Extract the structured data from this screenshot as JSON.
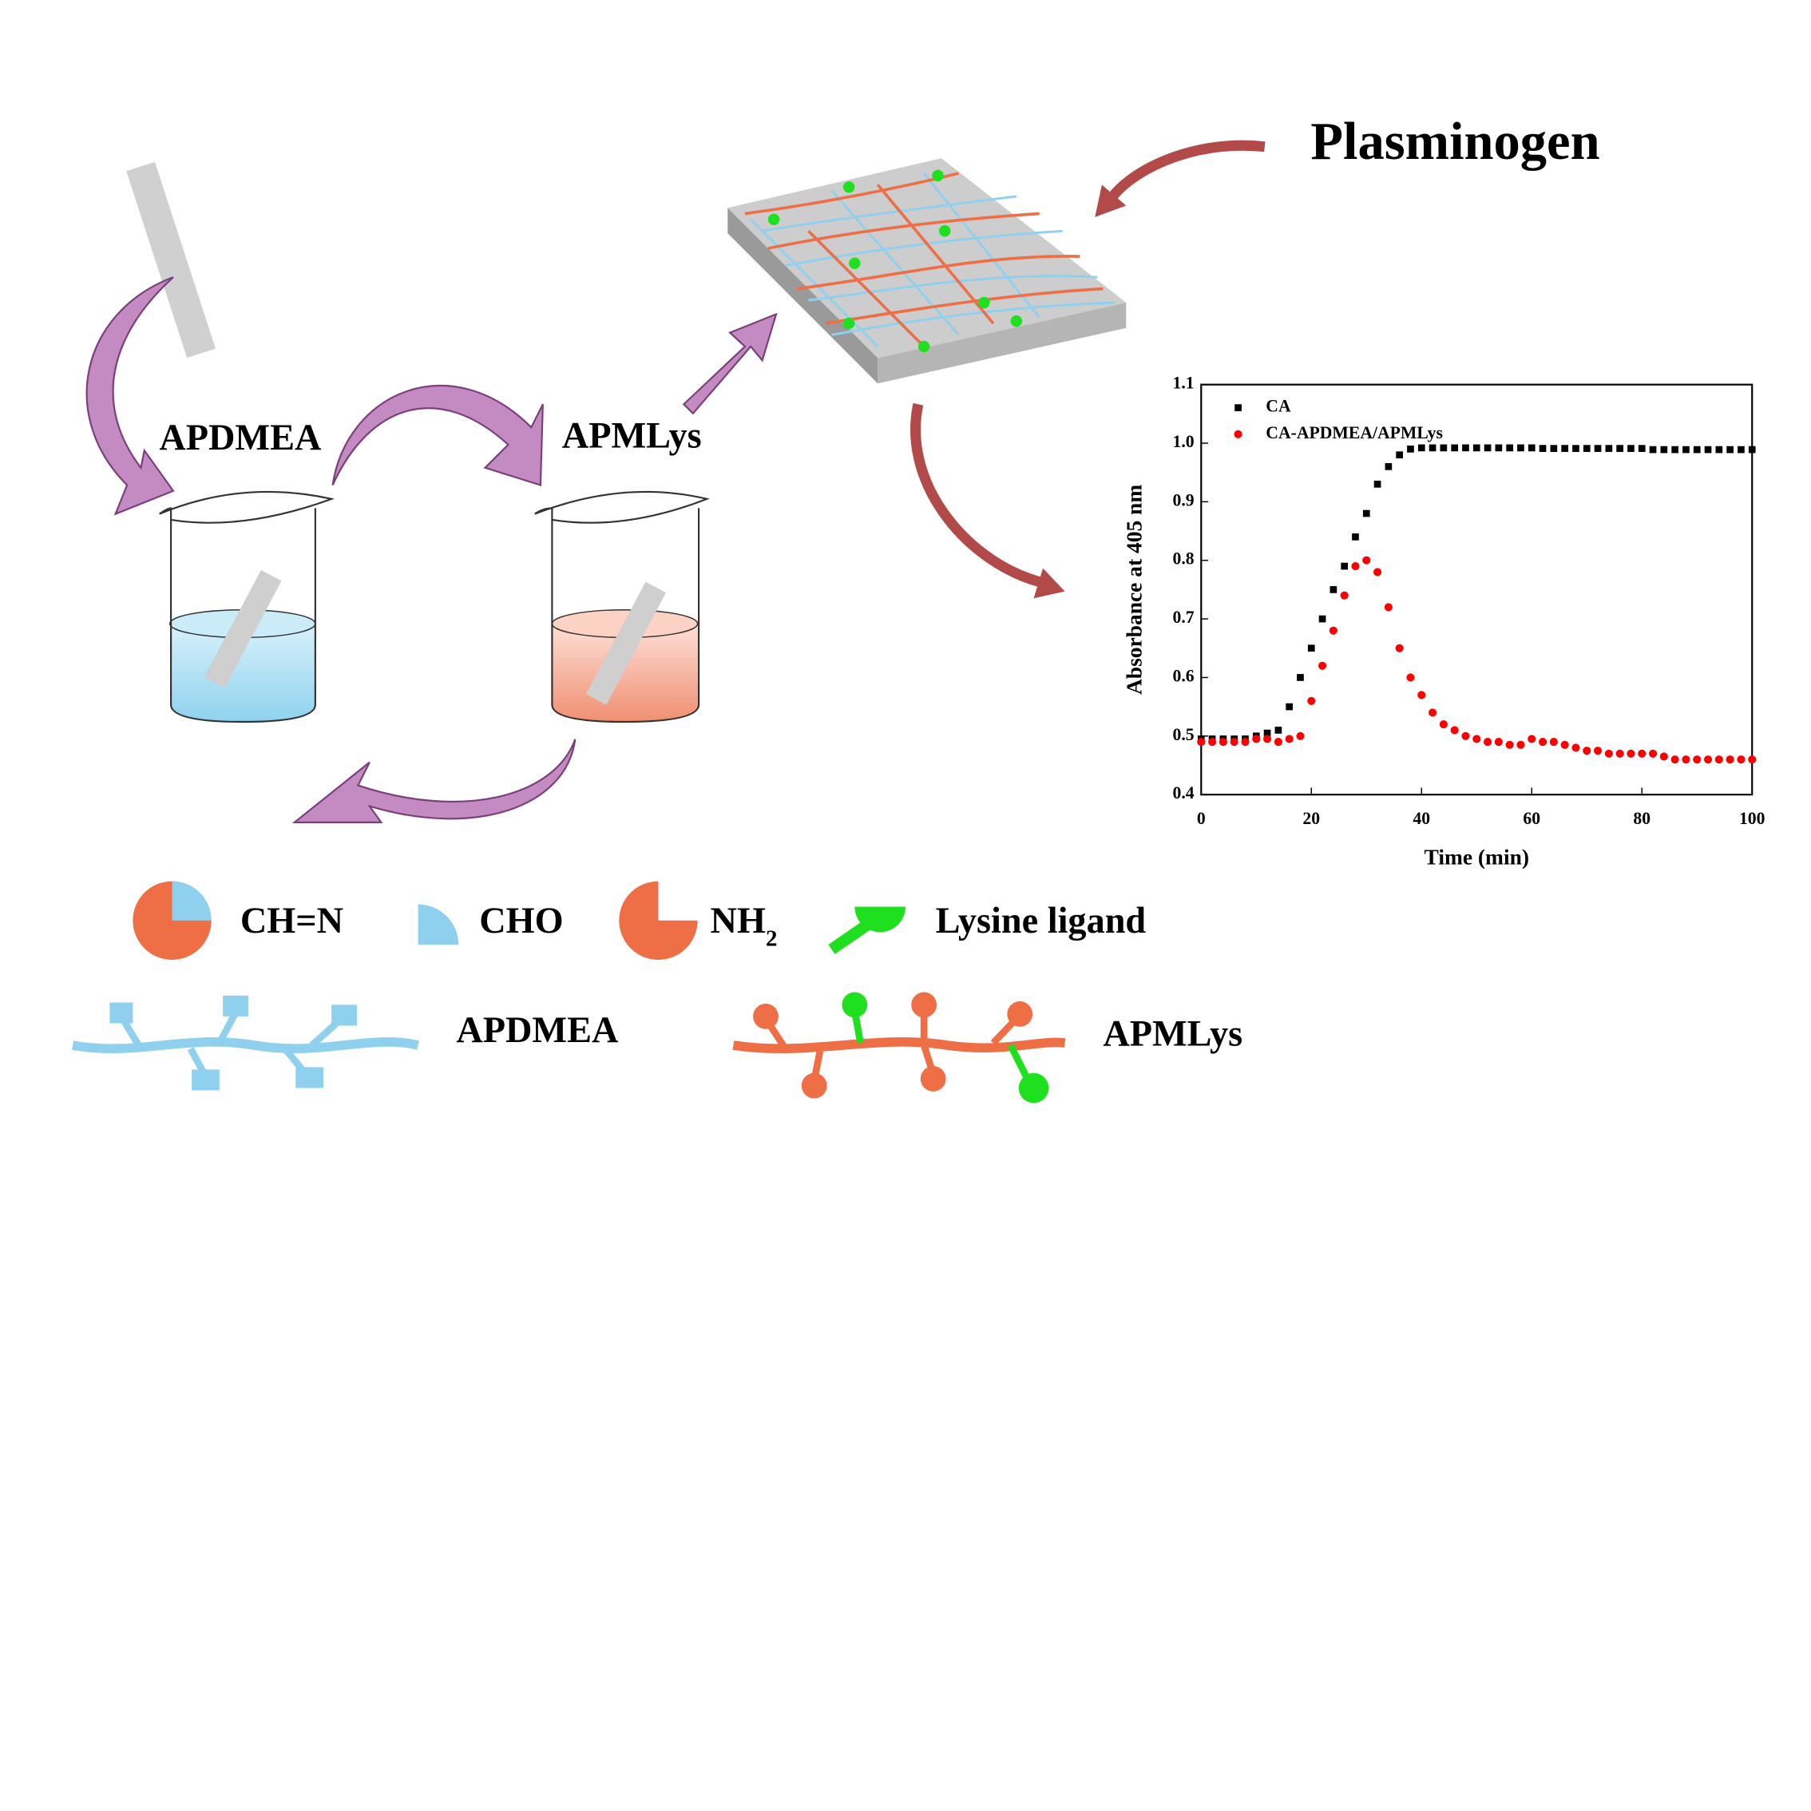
{
  "labels": {
    "plasminogen": "Plasminogen",
    "beaker_left": "APDMEA",
    "beaker_right": "APMLys",
    "legend_chn": "CH=N",
    "legend_cho": "CHO",
    "legend_nh2": {
      "base": "NH",
      "sub": "2"
    },
    "legend_lysine": "Lysine ligand",
    "chain_apdmea": "APDMEA",
    "chain_apmlys": "APMLys"
  },
  "chart_data": {
    "type": "scatter",
    "xlabel": "Time (min)",
    "ylabel": "Absorbance at 405 nm",
    "xlim": [
      0,
      100
    ],
    "xticks": [
      0,
      20,
      40,
      60,
      80,
      100
    ],
    "ylim": [
      0.4,
      1.1
    ],
    "yticks": [
      0.4,
      0.5,
      0.6,
      0.7,
      0.8,
      0.9,
      {
        "value": 1,
        "label": "1.0"
      },
      1.1
    ],
    "x": [
      0,
      2,
      4,
      6,
      8,
      10,
      12,
      14,
      16,
      18,
      20,
      22,
      24,
      26,
      28,
      30,
      32,
      34,
      36,
      38,
      40,
      42,
      44,
      46,
      48,
      50,
      52,
      54,
      56,
      58,
      60,
      62,
      64,
      66,
      68,
      70,
      72,
      74,
      76,
      78,
      80,
      82,
      84,
      86,
      88,
      90,
      92,
      94,
      96,
      98,
      100
    ],
    "series": [
      {
        "name": "CA",
        "color": "#000000",
        "marker": "square",
        "values": [
          0.495,
          0.495,
          0.495,
          0.495,
          0.495,
          0.5,
          0.505,
          0.51,
          0.55,
          0.6,
          0.65,
          0.7,
          0.75,
          0.79,
          0.84,
          0.88,
          0.93,
          0.96,
          0.98,
          0.99,
          0.992,
          0.992,
          0.992,
          0.992,
          0.992,
          0.992,
          0.992,
          0.992,
          0.992,
          0.992,
          0.992,
          0.991,
          0.991,
          0.991,
          0.991,
          0.991,
          0.991,
          0.991,
          0.991,
          0.991,
          0.991,
          0.989,
          0.989,
          0.989,
          0.989,
          0.989,
          0.989,
          0.989,
          0.989,
          0.989,
          0.989
        ]
      },
      {
        "name": "CA-APDMEA/APMLys",
        "color": "#ff0000",
        "marker": "circle",
        "values": [
          0.49,
          0.49,
          0.49,
          0.49,
          0.49,
          0.495,
          0.495,
          0.49,
          0.495,
          0.5,
          0.56,
          0.62,
          0.68,
          0.74,
          0.79,
          0.8,
          0.78,
          0.72,
          0.65,
          0.6,
          0.57,
          0.54,
          0.52,
          0.51,
          0.5,
          0.495,
          0.49,
          0.49,
          0.485,
          0.485,
          0.495,
          0.49,
          0.49,
          0.485,
          0.48,
          0.475,
          0.475,
          0.47,
          0.47,
          0.47,
          0.47,
          0.47,
          0.465,
          0.46,
          0.46,
          0.46,
          0.46,
          0.46,
          0.46,
          0.46,
          0.46
        ]
      }
    ]
  }
}
